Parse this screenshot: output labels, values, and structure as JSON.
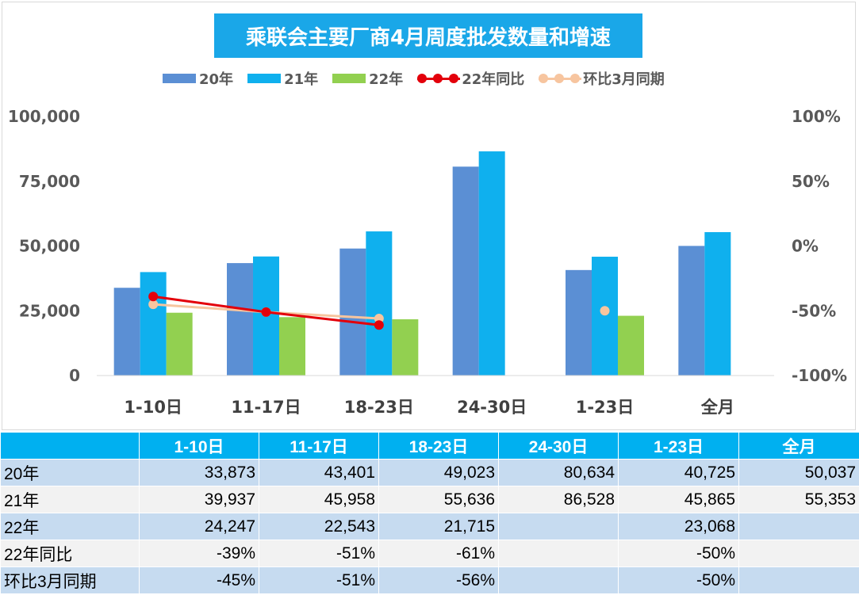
{
  "title": "乘联会主要厂商4月周度批发数量和增速",
  "legend": [
    {
      "label": "20年",
      "kind": "bar",
      "color": "#5b8fd4"
    },
    {
      "label": "21年",
      "kind": "bar",
      "color": "#0fb0ee"
    },
    {
      "label": "22年",
      "kind": "bar",
      "color": "#92d050"
    },
    {
      "label": "22年同比",
      "kind": "line",
      "color": "#e3000b"
    },
    {
      "label": "环比3月同期",
      "kind": "line",
      "color": "#f7c59f"
    }
  ],
  "chart_data": {
    "type": "bar",
    "categories": [
      "1-10日",
      "11-17日",
      "18-23日",
      "24-30日",
      "1-23日",
      "全月"
    ],
    "series": [
      {
        "name": "20年",
        "values": [
          33873,
          43401,
          49023,
          80634,
          40725,
          50037
        ]
      },
      {
        "name": "21年",
        "values": [
          39937,
          45958,
          55636,
          86528,
          45865,
          55353
        ]
      },
      {
        "name": "22年",
        "values": [
          24247,
          22543,
          21715,
          null,
          23068,
          null
        ]
      }
    ],
    "line_series": [
      {
        "name": "22年同比",
        "axis": "right",
        "values": [
          -0.39,
          -0.51,
          -0.61,
          null,
          null,
          null
        ]
      },
      {
        "name": "环比3月同期",
        "axis": "right",
        "values": [
          -0.45,
          -0.51,
          -0.56,
          null,
          -0.5,
          null
        ]
      }
    ],
    "y_left": {
      "min": 0,
      "max": 100000,
      "ticks": [
        "0",
        "25,000",
        "50,000",
        "75,000",
        "100,000"
      ]
    },
    "y_right": {
      "min": -1,
      "max": 1,
      "ticks": [
        "-100%",
        "-50%",
        "0%",
        "50%",
        "100%"
      ]
    },
    "grid": false,
    "legend_position": "top"
  },
  "table": {
    "headers": [
      "",
      "1-10日",
      "11-17日",
      "18-23日",
      "24-30日",
      "1-23日",
      "全月"
    ],
    "rows": [
      {
        "label": "20年",
        "cells": [
          "33,873",
          "43,401",
          "49,023",
          "80,634",
          "40,725",
          "50,037"
        ]
      },
      {
        "label": "21年",
        "cells": [
          "39,937",
          "45,958",
          "55,636",
          "86,528",
          "45,865",
          "55,353"
        ]
      },
      {
        "label": "22年",
        "cells": [
          "24,247",
          "22,543",
          "21,715",
          "",
          "23,068",
          ""
        ]
      },
      {
        "label": "22年同比",
        "cells": [
          "-39%",
          "-51%",
          "-61%",
          "",
          "-50%",
          ""
        ]
      },
      {
        "label": "环比3月同期",
        "cells": [
          "-45%",
          "-51%",
          "-56%",
          "",
          "-50%",
          ""
        ]
      }
    ]
  }
}
